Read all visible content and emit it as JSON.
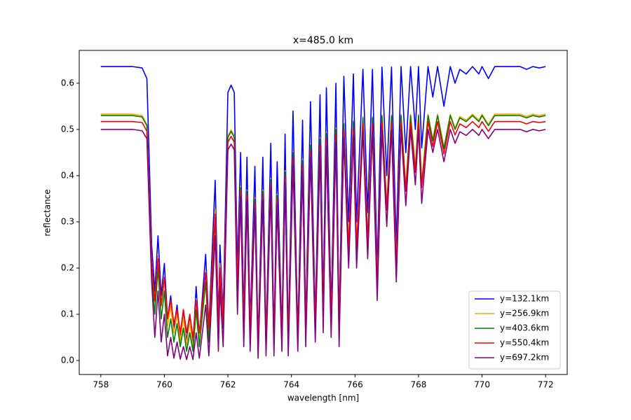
{
  "chart_data": {
    "type": "line",
    "title": "x=485.0 km",
    "xlabel": "wavelength [nm]",
    "ylabel": "reflectance",
    "x": [
      758,
      759,
      759.3,
      759.45,
      759.6,
      759.7,
      759.8,
      759.9,
      760.0,
      760.1,
      760.2,
      760.3,
      760.4,
      760.5,
      760.6,
      760.7,
      760.8,
      760.9,
      761.0,
      761.1,
      761.3,
      761.4,
      761.6,
      761.7,
      761.75,
      761.85,
      762.0,
      762.1,
      762.2,
      762.3,
      762.4,
      762.5,
      762.6,
      762.7,
      762.85,
      762.95,
      763.1,
      763.2,
      763.35,
      763.45,
      763.55,
      763.7,
      763.8,
      763.9,
      764.05,
      764.2,
      764.35,
      764.45,
      764.6,
      764.75,
      764.9,
      765.0,
      765.1,
      765.25,
      765.4,
      765.5,
      765.65,
      765.8,
      765.95,
      766.05,
      766.25,
      766.4,
      766.55,
      766.7,
      766.85,
      767.0,
      767.15,
      767.3,
      767.45,
      767.6,
      767.75,
      767.9,
      768.0,
      768.1,
      768.3,
      768.45,
      768.6,
      768.8,
      769.0,
      769.15,
      769.3,
      769.5,
      769.7,
      769.9,
      770.0,
      770.2,
      770.4,
      770.6,
      770.8,
      771.0,
      771.2,
      771.4,
      771.6,
      771.8,
      772.0
    ],
    "series": [
      {
        "name": "y=132.1km",
        "color": "#0000ff",
        "values": [
          0.636,
          0.636,
          0.633,
          0.61,
          0.25,
          0.15,
          0.27,
          0.14,
          0.21,
          0.09,
          0.14,
          0.07,
          0.12,
          0.05,
          0.11,
          0.04,
          0.1,
          0.03,
          0.16,
          0.05,
          0.23,
          0.07,
          0.39,
          0.08,
          0.25,
          0.1,
          0.58,
          0.596,
          0.58,
          0.2,
          0.45,
          0.1,
          0.44,
          0.08,
          0.42,
          0.04,
          0.44,
          0.05,
          0.47,
          0.05,
          0.43,
          0.06,
          0.49,
          0.05,
          0.54,
          0.06,
          0.52,
          0.08,
          0.56,
          0.09,
          0.575,
          0.12,
          0.59,
          0.11,
          0.6,
          0.08,
          0.615,
          0.3,
          0.62,
          0.3,
          0.63,
          0.32,
          0.63,
          0.2,
          0.635,
          0.4,
          0.635,
          0.25,
          0.636,
          0.45,
          0.636,
          0.5,
          0.636,
          0.46,
          0.636,
          0.57,
          0.636,
          0.55,
          0.636,
          0.6,
          0.63,
          0.62,
          0.636,
          0.62,
          0.636,
          0.61,
          0.636,
          0.636,
          0.636,
          0.636,
          0.636,
          0.63,
          0.636,
          0.633,
          0.636
        ]
      },
      {
        "name": "y=256.9km",
        "color": "#ffa500",
        "values": [
          0.533,
          0.533,
          0.53,
          0.511,
          0.21,
          0.126,
          0.226,
          0.117,
          0.176,
          0.075,
          0.117,
          0.059,
          0.101,
          0.042,
          0.092,
          0.034,
          0.084,
          0.025,
          0.134,
          0.042,
          0.193,
          0.059,
          0.327,
          0.067,
          0.21,
          0.084,
          0.486,
          0.499,
          0.486,
          0.168,
          0.377,
          0.084,
          0.369,
          0.067,
          0.352,
          0.034,
          0.369,
          0.042,
          0.394,
          0.042,
          0.36,
          0.05,
          0.411,
          0.042,
          0.453,
          0.05,
          0.436,
          0.067,
          0.469,
          0.075,
          0.482,
          0.101,
          0.494,
          0.092,
          0.503,
          0.067,
          0.515,
          0.251,
          0.52,
          0.251,
          0.528,
          0.268,
          0.528,
          0.168,
          0.532,
          0.335,
          0.532,
          0.21,
          0.533,
          0.377,
          0.533,
          0.419,
          0.533,
          0.385,
          0.533,
          0.478,
          0.533,
          0.461,
          0.533,
          0.503,
          0.528,
          0.52,
          0.533,
          0.52,
          0.533,
          0.511,
          0.533,
          0.533,
          0.533,
          0.533,
          0.533,
          0.528,
          0.533,
          0.53,
          0.533
        ]
      },
      {
        "name": "y=403.6km",
        "color": "#008000",
        "values": [
          0.53,
          0.53,
          0.527,
          0.508,
          0.19,
          0.1,
          0.2,
          0.09,
          0.15,
          0.05,
          0.09,
          0.04,
          0.08,
          0.03,
          0.07,
          0.02,
          0.06,
          0.02,
          0.11,
          0.03,
          0.17,
          0.04,
          0.31,
          0.05,
          0.19,
          0.07,
          0.483,
          0.496,
          0.483,
          0.15,
          0.374,
          0.07,
          0.366,
          0.05,
          0.349,
          0.02,
          0.366,
          0.03,
          0.391,
          0.03,
          0.357,
          0.04,
          0.408,
          0.03,
          0.45,
          0.04,
          0.433,
          0.05,
          0.466,
          0.06,
          0.479,
          0.08,
          0.491,
          0.08,
          0.5,
          0.05,
          0.512,
          0.23,
          0.517,
          0.23,
          0.525,
          0.25,
          0.525,
          0.15,
          0.529,
          0.33,
          0.529,
          0.19,
          0.53,
          0.37,
          0.53,
          0.41,
          0.53,
          0.38,
          0.53,
          0.475,
          0.53,
          0.458,
          0.53,
          0.5,
          0.525,
          0.517,
          0.53,
          0.517,
          0.53,
          0.508,
          0.53,
          0.53,
          0.53,
          0.53,
          0.53,
          0.525,
          0.53,
          0.527,
          0.53
        ]
      },
      {
        "name": "y=550.4km",
        "color": "#ff0000",
        "values": [
          0.517,
          0.517,
          0.515,
          0.496,
          0.21,
          0.13,
          0.22,
          0.12,
          0.18,
          0.09,
          0.13,
          0.08,
          0.11,
          0.06,
          0.11,
          0.06,
          0.1,
          0.05,
          0.13,
          0.06,
          0.19,
          0.07,
          0.317,
          0.07,
          0.2,
          0.08,
          0.472,
          0.485,
          0.472,
          0.163,
          0.366,
          0.081,
          0.358,
          0.065,
          0.341,
          0.033,
          0.358,
          0.041,
          0.382,
          0.041,
          0.35,
          0.049,
          0.398,
          0.041,
          0.439,
          0.049,
          0.423,
          0.065,
          0.455,
          0.073,
          0.467,
          0.098,
          0.48,
          0.089,
          0.488,
          0.065,
          0.5,
          0.244,
          0.504,
          0.244,
          0.512,
          0.26,
          0.512,
          0.163,
          0.516,
          0.325,
          0.516,
          0.203,
          0.517,
          0.366,
          0.517,
          0.407,
          0.517,
          0.374,
          0.517,
          0.463,
          0.517,
          0.447,
          0.517,
          0.488,
          0.512,
          0.504,
          0.517,
          0.504,
          0.517,
          0.496,
          0.517,
          0.517,
          0.517,
          0.517,
          0.517,
          0.512,
          0.517,
          0.515,
          0.517
        ]
      },
      {
        "name": "y=697.2km",
        "color": "#800080",
        "values": [
          0.5,
          0.5,
          0.497,
          0.48,
          0.17,
          0.05,
          0.15,
          0.04,
          0.1,
          0.01,
          0.05,
          0.005,
          0.04,
          0.003,
          0.03,
          0.002,
          0.03,
          0.002,
          0.06,
          0.005,
          0.12,
          0.01,
          0.27,
          0.02,
          0.16,
          0.03,
          0.456,
          0.468,
          0.456,
          0.1,
          0.354,
          0.03,
          0.346,
          0.02,
          0.33,
          0.005,
          0.346,
          0.01,
          0.369,
          0.01,
          0.338,
          0.02,
          0.385,
          0.01,
          0.424,
          0.02,
          0.409,
          0.03,
          0.44,
          0.04,
          0.452,
          0.06,
          0.464,
          0.05,
          0.472,
          0.03,
          0.483,
          0.2,
          0.487,
          0.2,
          0.495,
          0.22,
          0.495,
          0.13,
          0.499,
          0.29,
          0.499,
          0.17,
          0.5,
          0.335,
          0.5,
          0.38,
          0.5,
          0.34,
          0.5,
          0.45,
          0.5,
          0.43,
          0.5,
          0.47,
          0.495,
          0.487,
          0.5,
          0.487,
          0.5,
          0.48,
          0.5,
          0.5,
          0.5,
          0.5,
          0.5,
          0.495,
          0.5,
          0.497,
          0.5
        ]
      }
    ],
    "xlim": [
      757.32,
      772.68
    ],
    "ylim": [
      -0.0303,
      0.671
    ],
    "xticks": [
      758,
      760,
      762,
      764,
      766,
      768,
      770,
      772
    ],
    "yticks": [
      {
        "value": 0,
        "label": "0.0"
      },
      0.1,
      0.2,
      0.3,
      0.4,
      0.5,
      0.6
    ],
    "grid": false,
    "legend": "lower right"
  }
}
